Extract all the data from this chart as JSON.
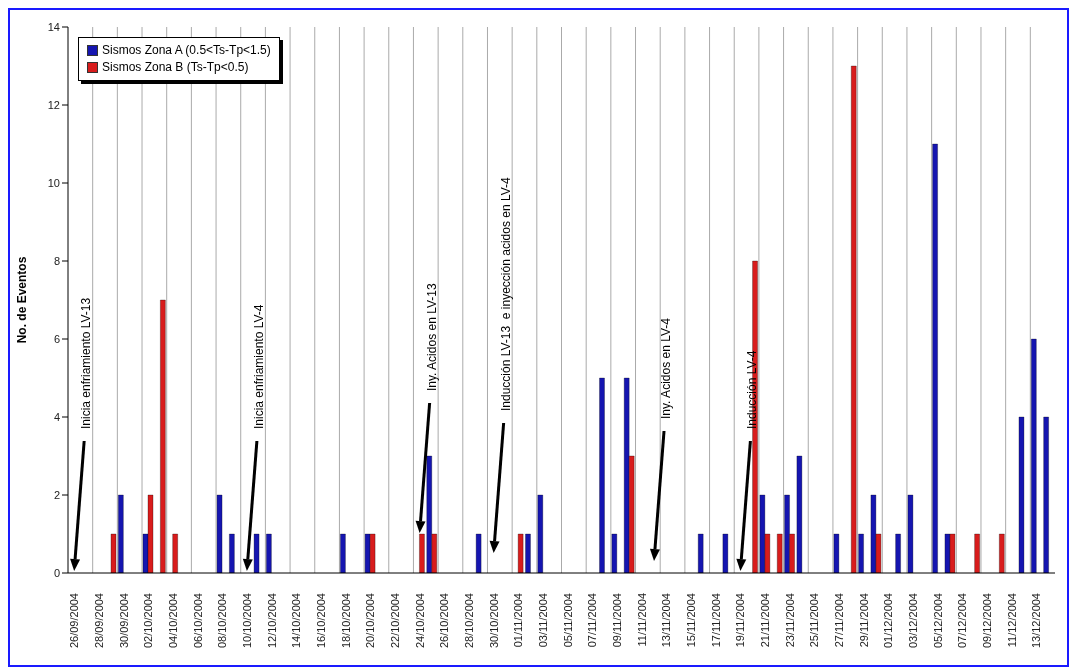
{
  "chart_data": {
    "type": "bar",
    "ylabel": "No. de Eventos",
    "categories": [
      "26/09/2004",
      null,
      "28/09/2004",
      null,
      "30/09/2004",
      null,
      "02/10/2004",
      null,
      "04/10/2004",
      null,
      "06/10/2004",
      null,
      "08/10/2004",
      null,
      "10/10/2004",
      null,
      "12/10/2004",
      null,
      "14/10/2004",
      null,
      "16/10/2004",
      null,
      "18/10/2004",
      null,
      "20/10/2004",
      null,
      "22/10/2004",
      null,
      "24/10/2004",
      null,
      "26/10/2004",
      null,
      "28/10/2004",
      null,
      "30/10/2004",
      null,
      "01/11/2004",
      null,
      "03/11/2004",
      null,
      "05/11/2004",
      null,
      "07/11/2004",
      null,
      "09/11/2004",
      null,
      "11/11/2004",
      null,
      "13/11/2004",
      null,
      "15/11/2004",
      null,
      "17/11/2004",
      null,
      "19/11/2004",
      null,
      "21/11/2004",
      null,
      "23/11/2004",
      null,
      "25/11/2004",
      null,
      "27/11/2004",
      null,
      "29/11/2004",
      null,
      "01/12/2004",
      null,
      "03/12/2004",
      null,
      "05/12/2004",
      null,
      "07/12/2004",
      null,
      "09/12/2004",
      null,
      "11/12/2004",
      null,
      "13/12/2004",
      null
    ],
    "series": [
      {
        "name": "Sismos Zona A (0.5<Ts-Tp<1.5)",
        "color": "#1515b0",
        "values": [
          0,
          0,
          0,
          0,
          2,
          0,
          1,
          0,
          0,
          0,
          0,
          0,
          2,
          1,
          0,
          1,
          1,
          0,
          0,
          0,
          0,
          0,
          1,
          0,
          1,
          0,
          0,
          0,
          0,
          3,
          0,
          0,
          0,
          1,
          0,
          0,
          0,
          1,
          2,
          0,
          0,
          0,
          0,
          5,
          1,
          5,
          0,
          0,
          0,
          0,
          0,
          1,
          0,
          1,
          0,
          0,
          2,
          0,
          2,
          3,
          0,
          0,
          1,
          0,
          1,
          2,
          0,
          1,
          2,
          0,
          11,
          1,
          0,
          0,
          0,
          0,
          0,
          4,
          6,
          4
        ]
      },
      {
        "name": "Sismos Zona B (Ts-Tp<0.5)",
        "color": "#d81c1c",
        "values": [
          0,
          0,
          0,
          1,
          0,
          0,
          2,
          7,
          1,
          0,
          0,
          0,
          0,
          0,
          0,
          0,
          0,
          0,
          0,
          0,
          0,
          0,
          0,
          0,
          1,
          0,
          0,
          0,
          1,
          1,
          0,
          0,
          0,
          0,
          0,
          0,
          1,
          0,
          0,
          0,
          0,
          0,
          0,
          0,
          0,
          3,
          0,
          0,
          0,
          0,
          0,
          0,
          0,
          0,
          0,
          8,
          1,
          1,
          1,
          0,
          0,
          0,
          0,
          13,
          0,
          1,
          0,
          0,
          0,
          0,
          0,
          1,
          0,
          1,
          0,
          1,
          0,
          0,
          0,
          0
        ]
      }
    ],
    "ylim": [
      0,
      14
    ],
    "yticks": [
      0,
      2,
      4,
      6,
      8,
      10,
      12,
      14
    ],
    "grid": "x",
    "legend": "top left",
    "annotations": [
      "Inicia enfriamiento LV-13",
      "Inicia enfriamiento LV-4",
      "Iny. Acidos en LV-13",
      "Inducción LV-13  e inyección acidos en LV-4",
      "Iny. Acidos en LV-4",
      "Inducción LV-4"
    ]
  }
}
